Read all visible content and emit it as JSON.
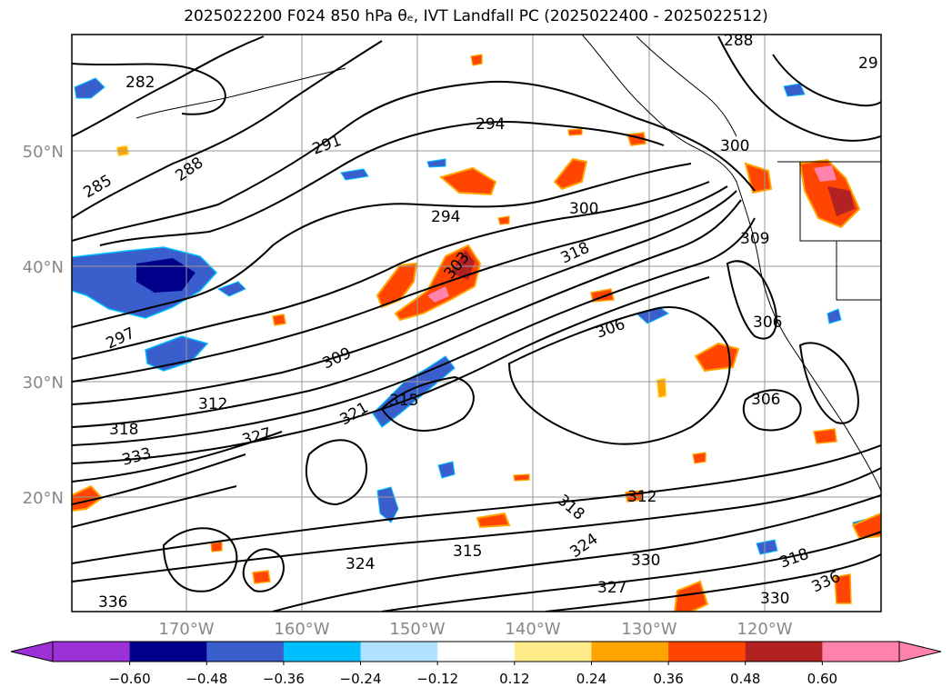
{
  "title": "2025022200 F024 850 hPa θₑ, IVT Landfall PC (2025022400 - 2025022512)",
  "lat_labels": [
    "50°N",
    "40°N",
    "30°N",
    "20°N"
  ],
  "lon_labels": [
    "170°W",
    "160°W",
    "150°W",
    "140°W",
    "130°W",
    "120°W"
  ],
  "contour_labels": [
    "282",
    "285",
    "288",
    "291",
    "294",
    "294",
    "297",
    "300",
    "300",
    "303",
    "306",
    "306",
    "306",
    "309",
    "309",
    "312",
    "312",
    "315",
    "315",
    "318",
    "318",
    "318",
    "318",
    "321",
    "324",
    "324",
    "327",
    "327",
    "330",
    "330",
    "333",
    "336",
    "336",
    "288",
    "29"
  ],
  "colorbar": {
    "ticks": [
      "−0.60",
      "−0.48",
      "−0.36",
      "−0.24",
      "−0.12",
      "0.12",
      "0.24",
      "0.36",
      "0.48",
      "0.60"
    ],
    "colors": [
      "#9b30d6",
      "#00008b",
      "#3a5fcd",
      "#00bfff",
      "#b0e2ff",
      "#ffffff",
      "#ffec8b",
      "#ffa500",
      "#ff4500",
      "#b22222",
      "#ff82ab",
      "#ff82ab"
    ]
  },
  "colors": {
    "contour": "#000000",
    "grid": "#999999",
    "coast": "#000000",
    "axis_label": "#888888"
  }
}
